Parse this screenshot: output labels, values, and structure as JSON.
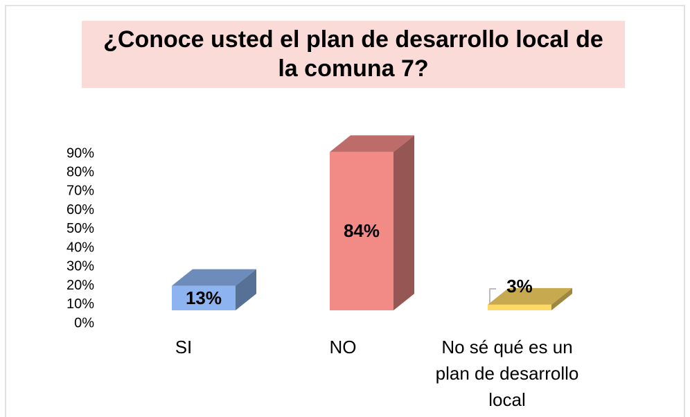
{
  "chart_data": {
    "type": "bar3d",
    "title": "¿Conoce usted el plan de desarrollo local de la comuna 7?",
    "categories": [
      "SI",
      "NO",
      "No sé qué es un plan de desarrollo local"
    ],
    "values": [
      13,
      84,
      3
    ],
    "value_labels": [
      "13%",
      "84%",
      "3%"
    ],
    "colors": [
      "#8db4f0",
      "#f28b86",
      "#ffd966"
    ],
    "ylim": [
      0,
      90
    ],
    "yticks": [
      {
        "value": 0,
        "label": "0%"
      },
      {
        "value": 10,
        "label": "10%"
      },
      {
        "value": 20,
        "label": "20%"
      },
      {
        "value": 30,
        "label": "30%"
      },
      {
        "value": 40,
        "label": "40%"
      },
      {
        "value": 50,
        "label": "50%"
      },
      {
        "value": 60,
        "label": "60%"
      },
      {
        "value": 70,
        "label": "70%"
      },
      {
        "value": 80,
        "label": "80%"
      },
      {
        "value": 90,
        "label": "90%"
      }
    ],
    "grid": false
  }
}
